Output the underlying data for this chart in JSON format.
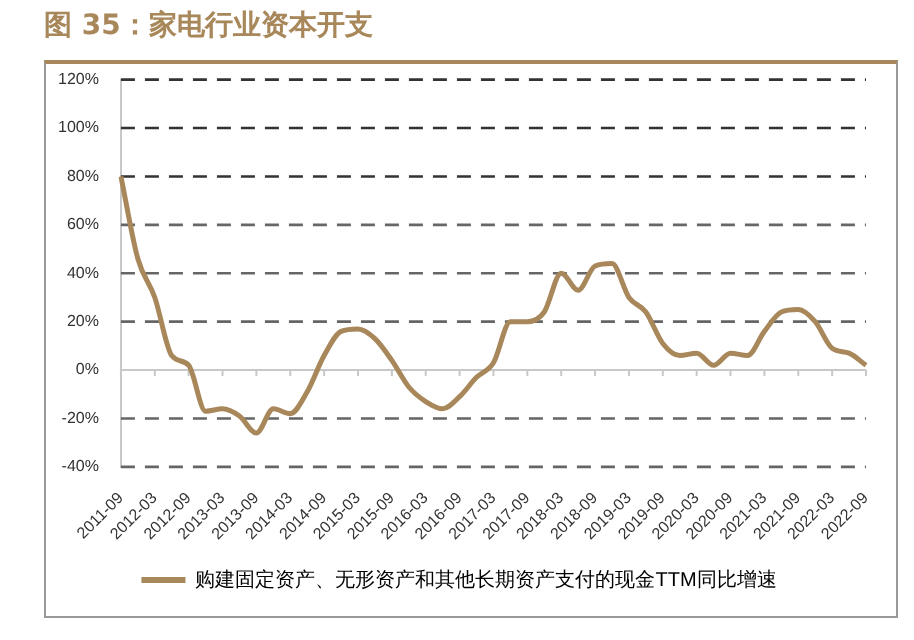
{
  "chart_data": {
    "type": "line",
    "title": "图 35：家电行业资本开支",
    "categories": [
      "2011-09",
      null,
      "2012-03",
      null,
      "2012-09",
      null,
      "2013-03",
      null,
      "2013-09",
      null,
      "2014-03",
      null,
      "2014-09",
      null,
      "2015-03",
      null,
      "2015-09",
      null,
      "2016-03",
      null,
      "2016-09",
      null,
      "2017-03",
      null,
      "2017-09",
      null,
      "2018-03",
      null,
      "2018-09",
      null,
      "2019-03",
      null,
      "2019-09",
      null,
      "2020-03",
      null,
      "2020-09",
      null,
      "2021-03",
      null,
      "2021-09",
      null,
      "2022-03",
      null,
      "2022-09"
    ],
    "series": [
      {
        "name": "购建固定资产、无形资产和其他长期资产支付的现金TTM同比增速",
        "color": "#a8875a",
        "values": [
          80,
          46,
          30,
          6,
          2,
          -17,
          -16,
          -19,
          -26,
          -16,
          -18,
          -9,
          6,
          16,
          17,
          13,
          4,
          -7,
          -13,
          -16,
          -11,
          -3,
          3,
          20,
          20,
          24,
          40,
          33,
          43,
          44,
          30,
          24,
          11,
          6,
          7,
          2,
          7,
          6,
          16,
          24,
          25,
          20,
          9,
          7,
          2
        ]
      }
    ],
    "ylim": [
      -40,
      120
    ],
    "yticks": [
      {
        "value": -40,
        "label": "-40%"
      },
      {
        "value": -20,
        "label": "-20%"
      },
      {
        "value": 0,
        "label": "0%"
      },
      {
        "value": 20,
        "label": "20%"
      },
      {
        "value": 40,
        "label": "40%"
      },
      {
        "value": 60,
        "label": "60%"
      },
      {
        "value": 80,
        "label": "80%"
      },
      {
        "value": 100,
        "label": "100%"
      },
      {
        "value": 120,
        "label": "120%"
      }
    ],
    "grid": "y",
    "legend": "bottom",
    "marker": "none",
    "line_style": "solid"
  }
}
